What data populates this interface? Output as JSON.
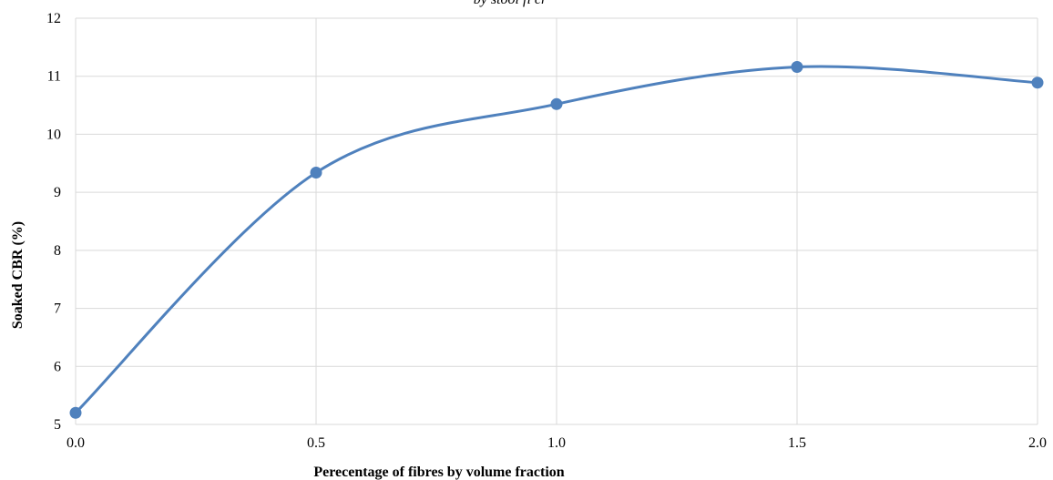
{
  "chart_data": {
    "type": "line",
    "title": "by stool fi cr",
    "xlabel": "Perecentage of fibres by volume fraction",
    "ylabel": "Soaked CBR (%)",
    "x": [
      0.0,
      0.5,
      1.0,
      1.5,
      2.0
    ],
    "x_tick_labels": [
      "0.0",
      "0.5",
      "1.0",
      "1.5",
      "2.0"
    ],
    "y_ticks": [
      5,
      6,
      7,
      8,
      9,
      10,
      11,
      12
    ],
    "y_tick_labels": [
      "5",
      "6",
      "7",
      "8",
      "9",
      "10",
      "11",
      "12"
    ],
    "xlim": [
      0.0,
      2.0
    ],
    "ylim": [
      5,
      12
    ],
    "grid": true,
    "smooth": true,
    "series": [
      {
        "values": [
          5.2,
          9.34,
          10.52,
          11.16,
          10.89
        ],
        "color": "#4f81bd"
      }
    ]
  }
}
